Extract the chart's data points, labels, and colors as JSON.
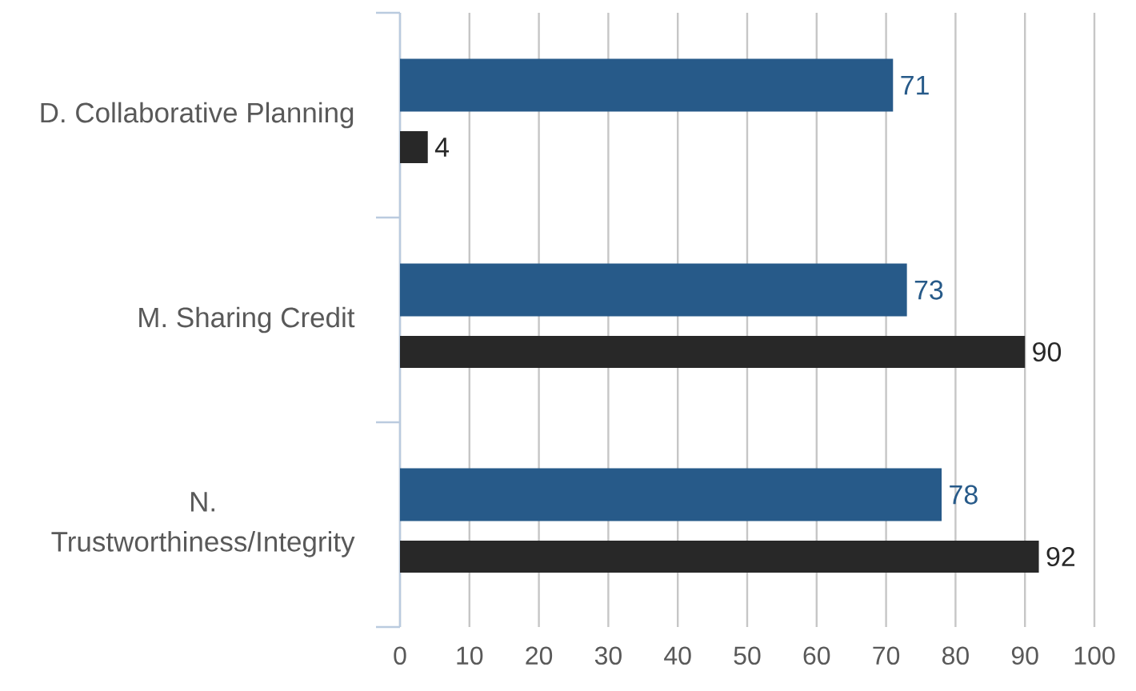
{
  "chart_data": {
    "type": "bar",
    "orientation": "horizontal",
    "categories": [
      "D. Collaborative Planning",
      "M. Sharing Credit",
      "N. Trustworthiness/Integrity"
    ],
    "series": [
      {
        "color": "#275a89",
        "values": [
          71,
          73,
          78
        ]
      },
      {
        "color": "#282828",
        "values": [
          4,
          90,
          92
        ]
      }
    ],
    "xlim": [
      0,
      100
    ],
    "xticks": [
      0,
      10,
      20,
      30,
      40,
      50,
      60,
      70,
      80,
      90,
      100
    ],
    "grid": "x",
    "data_labels": true
  }
}
